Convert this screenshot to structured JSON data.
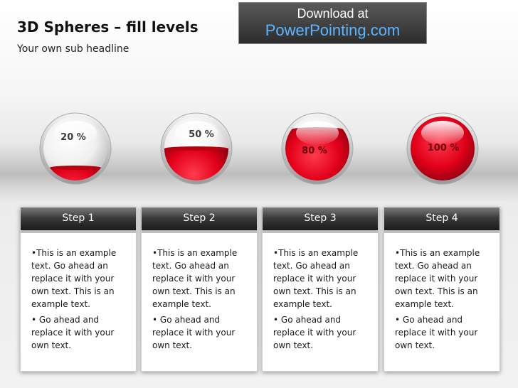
{
  "header": {
    "title": "3D Spheres – fill levels",
    "subtitle": "Your own sub headline"
  },
  "banner": {
    "line1": "Download at",
    "link": "PowerPointing.com",
    "link_color": "#5bb4ff"
  },
  "spheres": [
    {
      "label": "20 %",
      "fill": 0.2
    },
    {
      "label": "50 %",
      "fill": 0.5
    },
    {
      "label": "80 %",
      "fill": 0.8
    },
    {
      "label": "100 %",
      "fill": 1.0
    }
  ],
  "fill_color": "#e2001a",
  "steps": [
    {
      "title": "Step 1",
      "bullet1": "•This is an example text. Go ahead an replace it with your own text. This is an example text.",
      "bullet2": "• Go ahead and replace it with your own text."
    },
    {
      "title": "Step 2",
      "bullet1": "•This is an example text. Go ahead an replace it with your own text. This is an example text.",
      "bullet2": "• Go ahead and replace it with your own text."
    },
    {
      "title": "Step 3",
      "bullet1": "•This is an example text. Go ahead an replace it with your own text. This is an example text.",
      "bullet2": "• Go ahead and replace it with your own text."
    },
    {
      "title": "Step  4",
      "bullet1": "•This is an example text. Go ahead an replace it with your own text. This is an example text.",
      "bullet2": "• Go ahead and replace it with your own text."
    }
  ]
}
